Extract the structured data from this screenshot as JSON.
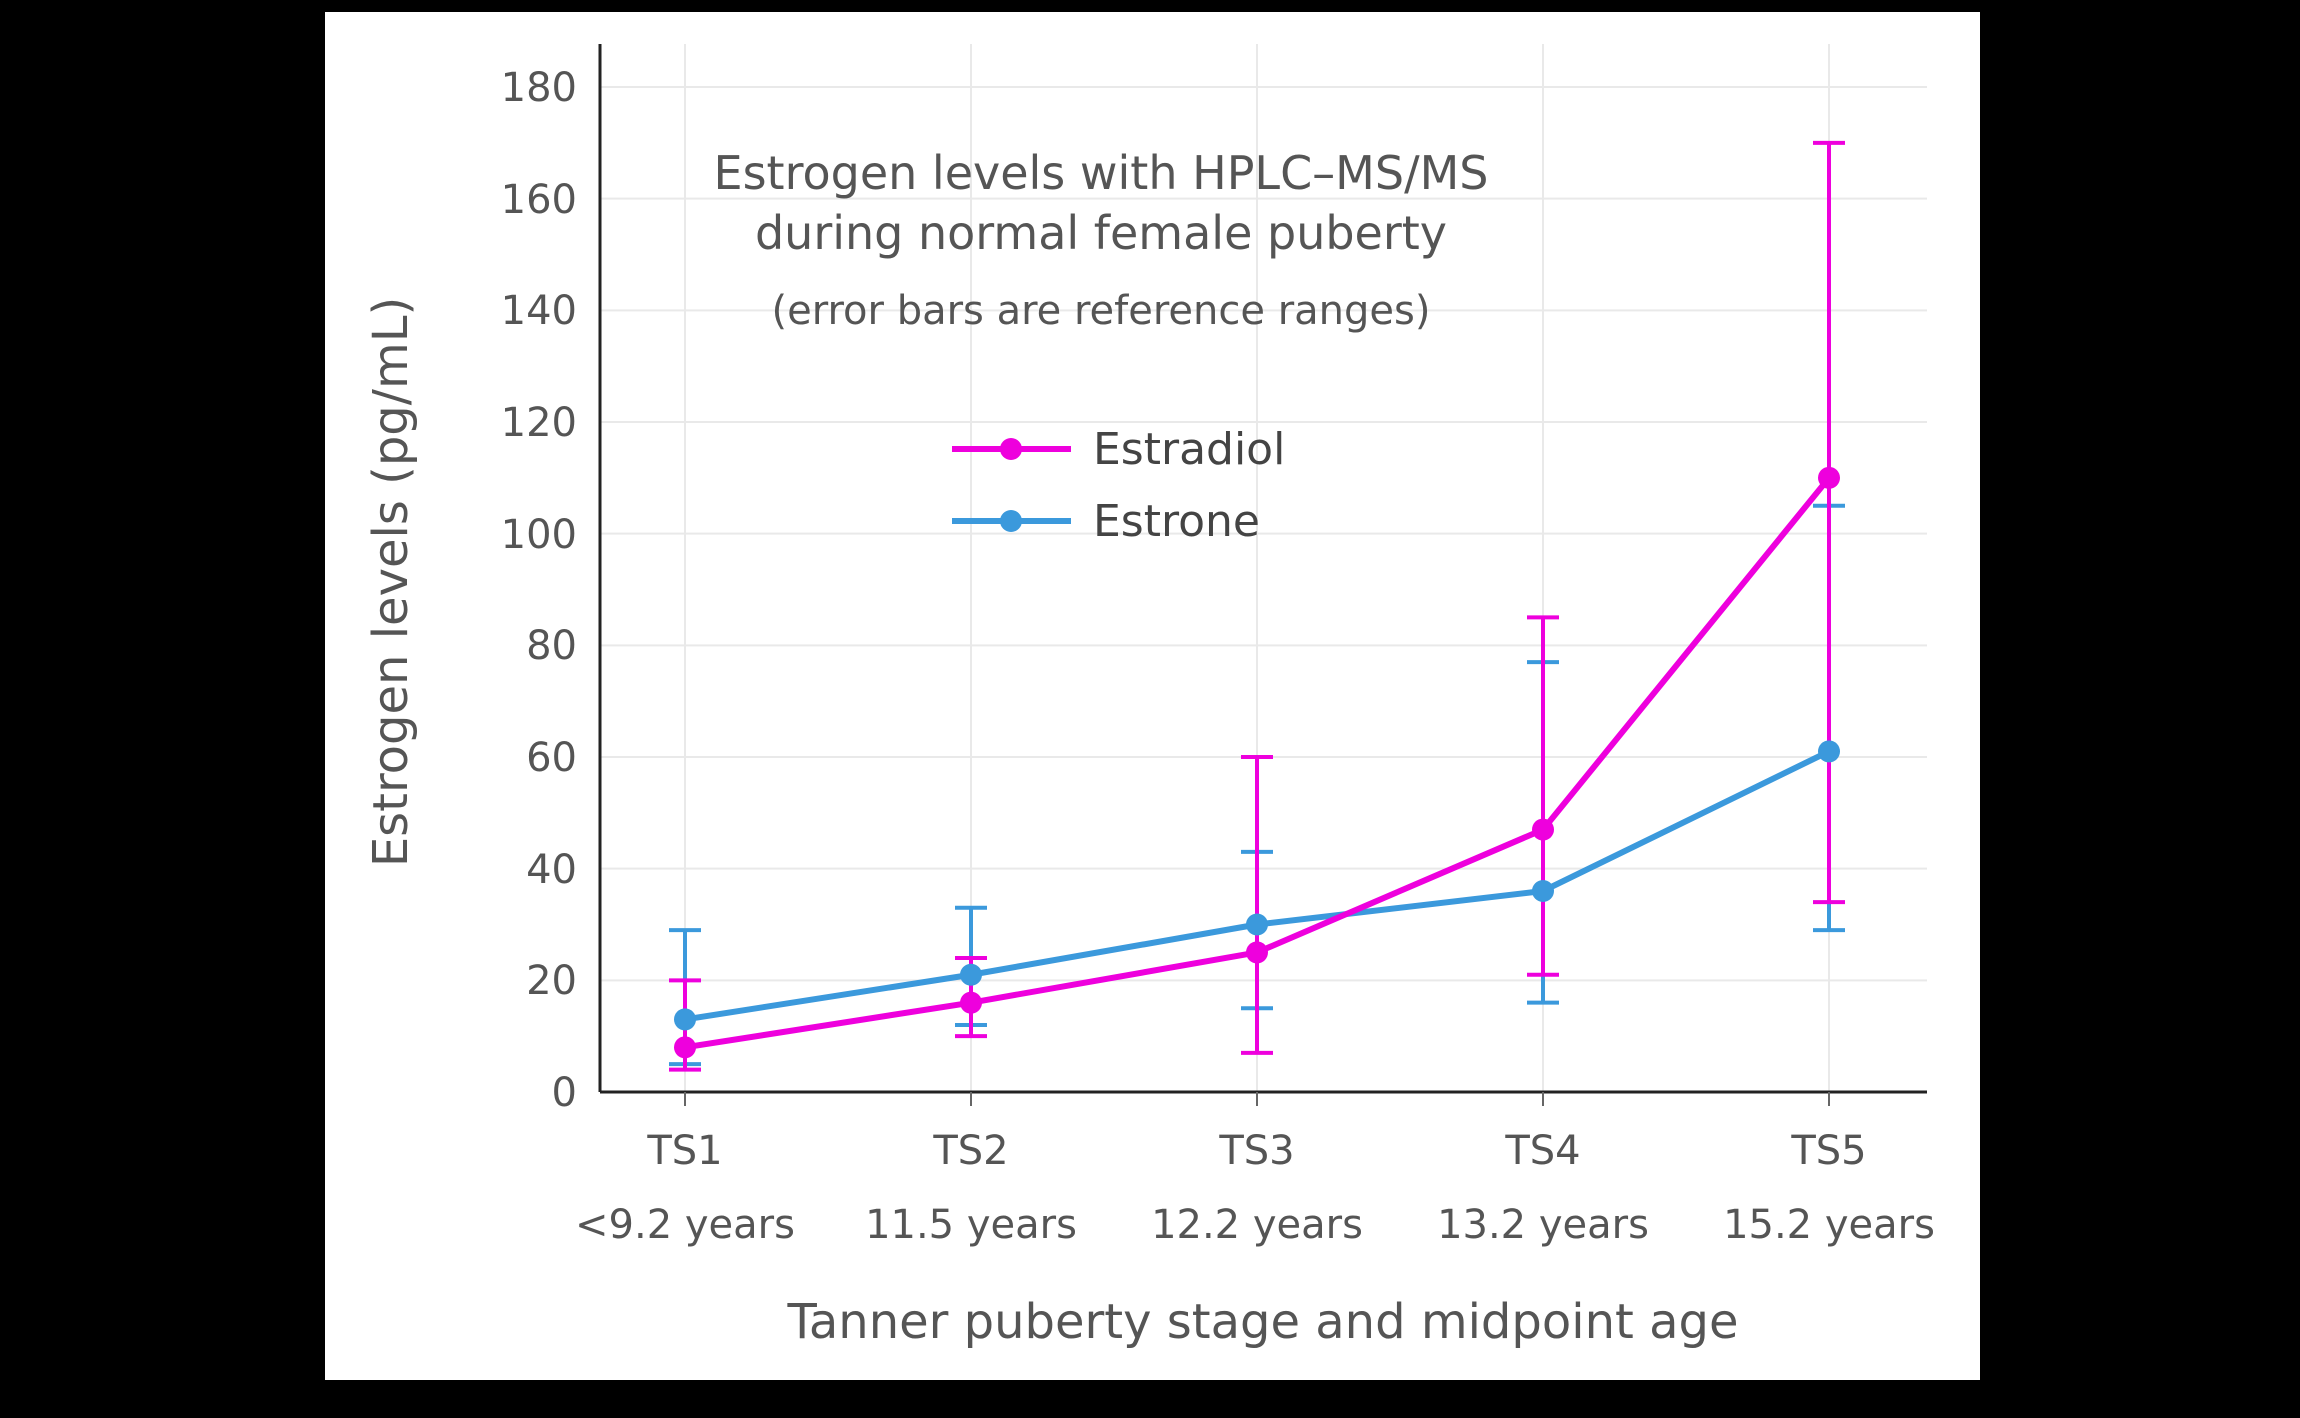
{
  "page": {
    "background_color": "#000000",
    "panel_color": "#ffffff"
  },
  "chart_data": {
    "type": "line",
    "title": "Estrogen levels with HPLC–MS/MS",
    "title_line2": "during normal female puberty",
    "subtitle": "(error bars are reference ranges)",
    "xlabel": "Tanner puberty stage and midpoint age",
    "ylabel": "Estrogen levels (pg/mL)",
    "categories": [
      "TS1",
      "TS2",
      "TS3",
      "TS4",
      "TS5"
    ],
    "category_sublabels": [
      "<9.2 years",
      "11.5 years",
      "12.2 years",
      "13.2 years",
      "15.2 years"
    ],
    "ylim": [
      0,
      180
    ],
    "ytick_step": 20,
    "ytick_labels": [
      "0",
      "20",
      "40",
      "60",
      "80",
      "100",
      "120",
      "140",
      "160",
      "180"
    ],
    "grid": true,
    "legend_position": "inside upper-middle",
    "axis_color": "#222222",
    "grid_color": "#e9e9e9",
    "series": [
      {
        "name": "Estradiol",
        "color": "#ee00dd",
        "values": [
          8,
          16,
          25,
          47,
          110
        ],
        "error_low": [
          4,
          10,
          7,
          21,
          34
        ],
        "error_high": [
          20,
          24,
          60,
          85,
          170
        ]
      },
      {
        "name": "Estrone",
        "color": "#3b99dc",
        "values": [
          13,
          21,
          30,
          36,
          61
        ],
        "error_low": [
          5,
          12,
          15,
          16,
          29
        ],
        "error_high": [
          29,
          33,
          43,
          77,
          105
        ]
      }
    ]
  }
}
